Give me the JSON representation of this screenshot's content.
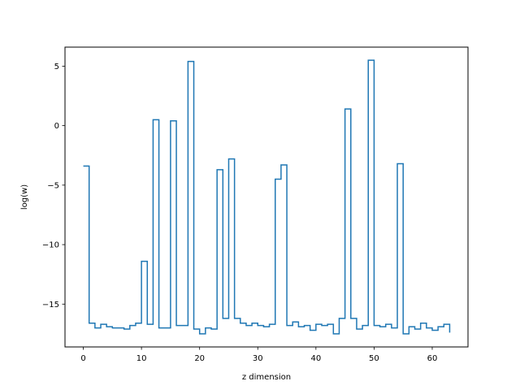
{
  "chart_data": {
    "type": "line",
    "drawstyle": "steps-post",
    "title": "",
    "xlabel": "z dimension",
    "ylabel": "log(w)",
    "xlim": [
      -3.15,
      66.15
    ],
    "ylim": [
      -18.6,
      6.6
    ],
    "xticks": [
      0,
      10,
      20,
      30,
      40,
      50,
      60
    ],
    "yticks": [
      5,
      0,
      -5,
      -10,
      -15
    ],
    "ytick_labels": [
      "5",
      "0",
      "−5",
      "−10",
      "−15"
    ],
    "grid": false,
    "series": [
      {
        "name": "",
        "color": "#1f77b4",
        "x": [
          0,
          1,
          2,
          3,
          4,
          5,
          6,
          7,
          8,
          9,
          10,
          11,
          12,
          13,
          14,
          15,
          16,
          17,
          18,
          19,
          20,
          21,
          22,
          23,
          24,
          25,
          26,
          27,
          28,
          29,
          30,
          31,
          32,
          33,
          34,
          35,
          36,
          37,
          38,
          39,
          40,
          41,
          42,
          43,
          44,
          45,
          46,
          47,
          48,
          49,
          50,
          51,
          52,
          53,
          54,
          55,
          56,
          57,
          58,
          59,
          60,
          61,
          62,
          63
        ],
        "y": [
          -3.4,
          -16.6,
          -17.0,
          -16.7,
          -16.9,
          -17.0,
          -17.0,
          -17.1,
          -16.8,
          -16.6,
          -11.4,
          -16.7,
          0.5,
          -17.0,
          -17.0,
          0.4,
          -16.8,
          -16.8,
          5.4,
          -17.1,
          -17.5,
          -17.0,
          -17.1,
          -3.7,
          -16.2,
          -2.8,
          -16.2,
          -16.6,
          -16.8,
          -16.6,
          -16.8,
          -16.9,
          -16.7,
          -4.5,
          -3.3,
          -16.8,
          -16.5,
          -16.9,
          -16.8,
          -17.2,
          -16.7,
          -16.8,
          -16.7,
          -17.5,
          -16.2,
          1.4,
          -16.2,
          -17.1,
          -16.8,
          5.5,
          -16.8,
          -16.9,
          -16.7,
          -17.0,
          -3.2,
          -17.5,
          -16.9,
          -17.1,
          -16.6,
          -17.0,
          -17.2,
          -16.9,
          -16.7,
          -17.4
        ]
      }
    ]
  }
}
